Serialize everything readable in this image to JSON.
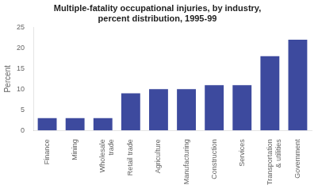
{
  "chart_data": {
    "type": "bar",
    "title": "Multiple-fatality occupational injuries, by industry,\npercent distribution, 1995-99",
    "ylabel": "Percent",
    "categories": [
      "Finance",
      "Mining",
      "Wholesale\ntrade",
      "Retail trade",
      "Agriculture",
      "Manufacturing",
      "Construction",
      "Services",
      "Transportation\n& utilities",
      "Government"
    ],
    "values": [
      3,
      3,
      3,
      9,
      10,
      10,
      11,
      11,
      18,
      22
    ],
    "color": "#3d4a9e",
    "ylim": [
      0,
      25
    ],
    "yticks": [
      0,
      5,
      10,
      15,
      20,
      25
    ],
    "grid": false
  }
}
